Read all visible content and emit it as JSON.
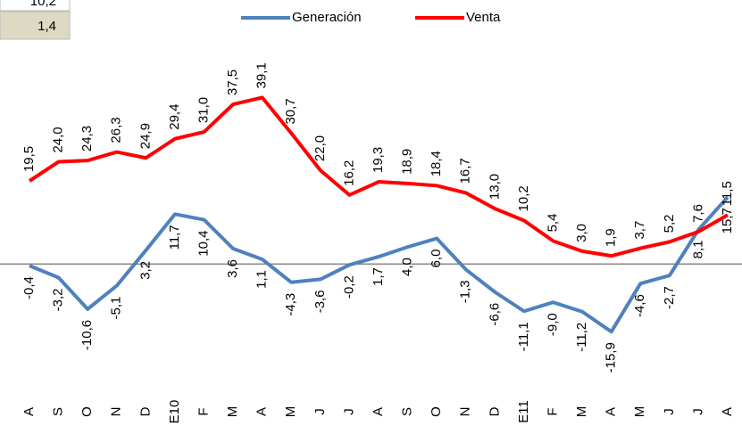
{
  "side_cells": [
    "10,2",
    "1,4"
  ],
  "chart_data": {
    "type": "line",
    "categories": [
      "A",
      "S",
      "O",
      "N",
      "D",
      "E10",
      "F",
      "M",
      "A",
      "M",
      "J",
      "J",
      "A",
      "S",
      "O",
      "N",
      "D",
      "E11",
      "F",
      "M",
      "A",
      "M",
      "J",
      "J",
      "A"
    ],
    "ylim": [
      -28,
      62
    ],
    "legend": "top",
    "series": [
      {
        "name": "Generación",
        "color": "#4f81bd",
        "values": [
          -0.4,
          -3.2,
          -10.6,
          -5.1,
          3.2,
          11.7,
          10.4,
          3.6,
          1.1,
          -4.3,
          -3.6,
          -0.2,
          1.7,
          4.0,
          6.0,
          -1.3,
          -6.6,
          -11.1,
          -9.0,
          -11.2,
          -15.9,
          -4.6,
          -2.7,
          8.1,
          15.7
        ],
        "value_labels": [
          "-0,4",
          "-3,2",
          "-10,6",
          "-5,1",
          "3,2",
          "11,7",
          "10,4",
          "3,6",
          "1,1",
          "-4,3",
          "-3,6",
          "-0,2",
          "1,7",
          "4,0",
          "6,0",
          "-1,3",
          "-6,6",
          "-11,1",
          "-9,0",
          "-11,2",
          "-15,9",
          "-4,6",
          "-2,7",
          "8,1",
          "15,7"
        ]
      },
      {
        "name": "Venta",
        "color": "#ff0000",
        "values": [
          19.5,
          24.0,
          24.3,
          26.3,
          24.9,
          29.4,
          31.0,
          37.5,
          39.1,
          30.7,
          22.0,
          16.2,
          19.3,
          18.9,
          18.4,
          16.7,
          13.0,
          10.2,
          5.4,
          3.0,
          1.9,
          3.7,
          5.2,
          7.6,
          11.5
        ],
        "value_labels": [
          "19,5",
          "24,0",
          "24,3",
          "26,3",
          "24,9",
          "29,4",
          "31,0",
          "37,5",
          "39,1",
          "30,7",
          "22,0",
          "16,2",
          "19,3",
          "18,9",
          "18,4",
          "16,7",
          "13,0",
          "10,2",
          "5,4",
          "3,0",
          "1,9",
          "3,7",
          "5,2",
          "7,6",
          "11,5"
        ]
      }
    ]
  }
}
